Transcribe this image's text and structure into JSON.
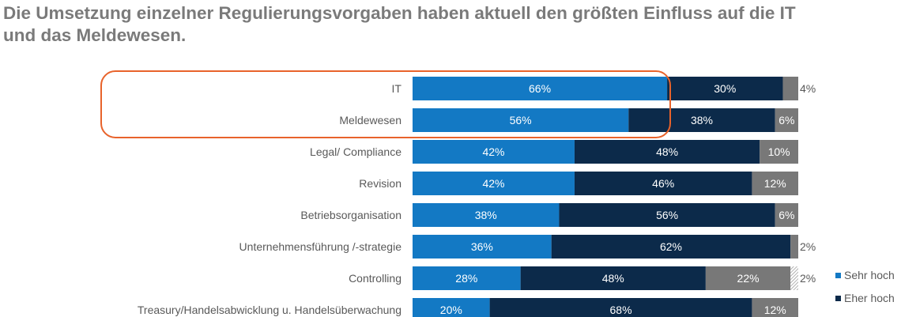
{
  "title_line1": "Die Umsetzung einzelner Regulierungsvorgaben haben aktuell den größten Einfluss auf die IT",
  "title_line2": "und das Meldewesen.",
  "chart_data": {
    "type": "bar",
    "orientation": "horizontal",
    "stacked": true,
    "normalized_percent": true,
    "categories": [
      "IT",
      "Meldewesen",
      "Legal/ Compliance",
      "Revision",
      "Betriebsorganisation",
      "Unternehmensführung /-strategie",
      "Controlling",
      "Treasury/Handelsabwicklung u. Handelsüberwachung"
    ],
    "series": [
      {
        "name": "Sehr hoch",
        "color": "#1379c4",
        "values": [
          66,
          56,
          42,
          42,
          38,
          36,
          28,
          20
        ]
      },
      {
        "name": "Eher hoch",
        "color": "#0c2a4a",
        "values": [
          30,
          38,
          48,
          46,
          56,
          62,
          48,
          68
        ]
      },
      {
        "name": "",
        "color": "#787878",
        "values": [
          4,
          6,
          10,
          12,
          6,
          2,
          22,
          12
        ]
      },
      {
        "name": "",
        "color": "#c8c8c8",
        "pattern": "hatched",
        "values": [
          0,
          0,
          0,
          0,
          0,
          0,
          2,
          0
        ]
      }
    ],
    "labels": [
      [
        "66%",
        "30%",
        "4%",
        ""
      ],
      [
        "56%",
        "38%",
        "6%",
        ""
      ],
      [
        "42%",
        "48%",
        "10%",
        ""
      ],
      [
        "42%",
        "46%",
        "12%",
        ""
      ],
      [
        "38%",
        "56%",
        "6%",
        ""
      ],
      [
        "36%",
        "62%",
        "2%",
        ""
      ],
      [
        "28%",
        "48%",
        "22%",
        "2%"
      ],
      [
        "20%",
        "68%",
        "12%",
        ""
      ]
    ],
    "outside_label_series": 3,
    "highlight": {
      "categories": [
        "IT",
        "Meldewesen"
      ],
      "color": "#e8632b"
    },
    "legend": {
      "position": "bottom-right",
      "entries": [
        "Sehr hoch",
        "Eher hoch"
      ]
    },
    "grid": false,
    "xlim": [
      0,
      100
    ]
  }
}
